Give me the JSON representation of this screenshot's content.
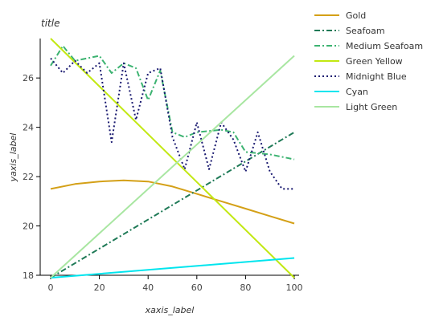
{
  "chart_data": {
    "type": "line",
    "title": "title",
    "xlabel": "xaxis_label",
    "ylabel": "yaxis_label",
    "xlim": [
      0,
      100
    ],
    "ylim": [
      18,
      27.6
    ],
    "xticks": [
      0,
      20,
      40,
      60,
      80,
      100
    ],
    "yticks": [
      18,
      20,
      22,
      24,
      26
    ],
    "grid": false,
    "legend": "right",
    "series": [
      {
        "name": "Gold",
        "color": "#d4a017",
        "dash": "solid",
        "points": [
          [
            0,
            21.5
          ],
          [
            10,
            21.7
          ],
          [
            20,
            21.8
          ],
          [
            30,
            21.85
          ],
          [
            40,
            21.8
          ],
          [
            50,
            21.6
          ],
          [
            60,
            21.3
          ],
          [
            70,
            21.0
          ],
          [
            80,
            20.7
          ],
          [
            90,
            20.4
          ],
          [
            100,
            20.1
          ]
        ]
      },
      {
        "name": "Seafoam",
        "color": "#1f7a57",
        "dash": "dashdot",
        "points": [
          [
            0,
            17.9
          ],
          [
            100,
            23.8
          ]
        ]
      },
      {
        "name": "Medium Seafoam",
        "color": "#3cb371",
        "dash": "dashdot",
        "points": [
          [
            0,
            26.5
          ],
          [
            5,
            27.3
          ],
          [
            10,
            26.7
          ],
          [
            20,
            26.9
          ],
          [
            25,
            26.2
          ],
          [
            30,
            26.6
          ],
          [
            35,
            26.4
          ],
          [
            40,
            25.1
          ],
          [
            45,
            26.3
          ],
          [
            50,
            23.8
          ],
          [
            55,
            23.6
          ],
          [
            60,
            23.8
          ],
          [
            70,
            23.9
          ],
          [
            75,
            23.8
          ],
          [
            80,
            23.0
          ],
          [
            90,
            22.9
          ],
          [
            100,
            22.7
          ]
        ]
      },
      {
        "name": "Green Yellow",
        "color": "#c2e812",
        "dash": "solid",
        "points": [
          [
            0,
            27.6
          ],
          [
            100,
            17.9
          ]
        ]
      },
      {
        "name": "Midnight Blue",
        "color": "#191970",
        "dash": "dotted",
        "points": [
          [
            0,
            26.8
          ],
          [
            5,
            26.2
          ],
          [
            10,
            26.7
          ],
          [
            15,
            26.2
          ],
          [
            20,
            26.6
          ],
          [
            25,
            23.4
          ],
          [
            30,
            26.6
          ],
          [
            35,
            24.3
          ],
          [
            40,
            26.2
          ],
          [
            45,
            26.4
          ],
          [
            50,
            23.6
          ],
          [
            55,
            22.3
          ],
          [
            60,
            24.2
          ],
          [
            65,
            22.3
          ],
          [
            70,
            24.2
          ],
          [
            75,
            23.5
          ],
          [
            80,
            22.2
          ],
          [
            85,
            23.8
          ],
          [
            90,
            22.2
          ],
          [
            95,
            21.5
          ],
          [
            100,
            21.5
          ]
        ]
      },
      {
        "name": "Cyan",
        "color": "#00e5ee",
        "dash": "solid",
        "points": [
          [
            0,
            17.9
          ],
          [
            100,
            18.7
          ]
        ]
      },
      {
        "name": "Light Green",
        "color": "#a8e6a1",
        "dash": "solid",
        "points": [
          [
            0,
            17.9
          ],
          [
            100,
            26.9
          ]
        ]
      }
    ]
  }
}
